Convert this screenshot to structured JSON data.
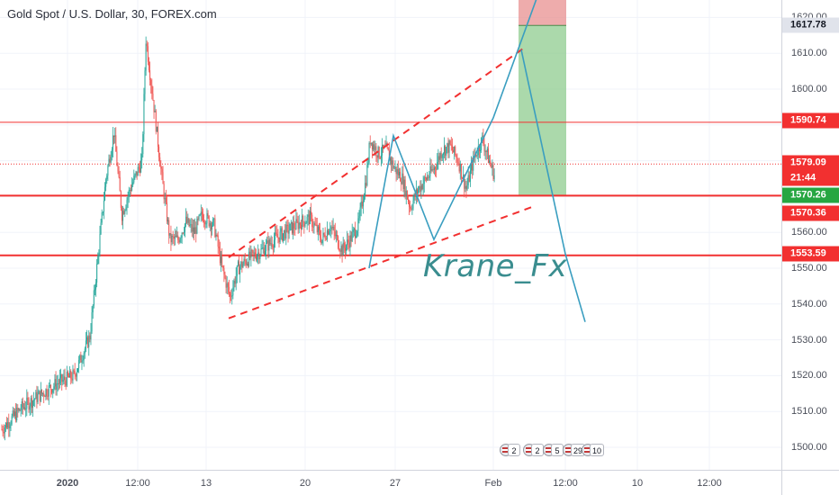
{
  "symbol": {
    "title": "Gold Spot / U.S. Dollar, 30, FOREX.com"
  },
  "watermark": "Krane_Fx",
  "price_axis": {
    "ticks": [
      "1500.00",
      "1510.00",
      "1520.00",
      "1530.00",
      "1540.00",
      "1550.00",
      "1560.00",
      "1570.00",
      "1580.00",
      "1590.00",
      "1600.00",
      "1610.00",
      "1620.00"
    ],
    "tags": [
      {
        "label": "1617.78",
        "bg": "#e0e3eb",
        "fg": "#131722"
      },
      {
        "label": "1590.74",
        "bg": "#f23030",
        "fg": "#ffffff"
      },
      {
        "label": "1579.09",
        "bg": "#f23030",
        "fg": "#ffffff"
      },
      {
        "label": "21:44",
        "bg": "#f23030",
        "fg": "#ffffff"
      },
      {
        "label": "1570.26",
        "bg": "#26a641",
        "fg": "#ffffff"
      },
      {
        "label": "1570.36",
        "bg": "#f23030",
        "fg": "#ffffff"
      },
      {
        "label": "1553.59",
        "bg": "#f23030",
        "fg": "#ffffff"
      }
    ]
  },
  "time_axis": {
    "labels": [
      "2020",
      "12:00",
      "13",
      "20",
      "27",
      "Feb",
      "12:00",
      "10",
      "12:00"
    ]
  },
  "events": {
    "counts": [
      "2",
      "2",
      "5",
      "29",
      "10"
    ]
  },
  "colors": {
    "up": "#26a69a",
    "down": "#ef5350",
    "level": "#f23030",
    "pattern": "#3a9ec0",
    "target_zone": "#8fcc8f",
    "stop_zone": "#e89090"
  },
  "chart_data": {
    "type": "candlestick",
    "symbol": "Gold Spot / U.S. Dollar",
    "interval": "30",
    "ylim": [
      1495,
      1630
    ],
    "price_levels": [
      1590.74,
      1579.09,
      1570.26,
      1553.59
    ],
    "position": {
      "entry": 1570.26,
      "target": 1617.78
    },
    "trend_channel": {
      "lower_start": 1536,
      "lower_end": 1567,
      "upper_start": 1553,
      "upper_end": 1612
    },
    "zigzag_pattern": [
      1550,
      1587,
      1558,
      1592,
      1628
    ],
    "projection": [
      1611,
      1554,
      1535
    ],
    "close_path": [
      [
        0,
        1505
      ],
      [
        5,
        1511
      ],
      [
        10,
        1515
      ],
      [
        14,
        1518
      ],
      [
        18,
        1520
      ],
      [
        22,
        1531
      ],
      [
        26,
        1575
      ],
      [
        28,
        1588
      ],
      [
        30,
        1565
      ],
      [
        32,
        1572
      ],
      [
        35,
        1580
      ],
      [
        36,
        1614
      ],
      [
        38,
        1595
      ],
      [
        40,
        1575
      ],
      [
        42,
        1558
      ],
      [
        44,
        1558
      ],
      [
        46,
        1563
      ],
      [
        48,
        1560
      ],
      [
        50,
        1565
      ],
      [
        53,
        1562
      ],
      [
        55,
        1550
      ],
      [
        57,
        1542
      ],
      [
        59,
        1550
      ],
      [
        62,
        1553
      ],
      [
        65,
        1555
      ],
      [
        68,
        1558
      ],
      [
        72,
        1561
      ],
      [
        75,
        1563
      ],
      [
        77,
        1564
      ],
      [
        80,
        1558
      ],
      [
        82,
        1562
      ],
      [
        85,
        1555
      ],
      [
        87,
        1558
      ],
      [
        89,
        1562
      ],
      [
        91,
        1575
      ],
      [
        92,
        1586
      ],
      [
        94,
        1582
      ],
      [
        96,
        1583
      ],
      [
        98,
        1578
      ],
      [
        100,
        1575
      ],
      [
        102,
        1567
      ],
      [
        104,
        1572
      ],
      [
        106,
        1575
      ],
      [
        108,
        1578
      ],
      [
        110,
        1583
      ],
      [
        112,
        1584
      ],
      [
        114,
        1580
      ],
      [
        116,
        1572
      ],
      [
        118,
        1581
      ],
      [
        120,
        1586
      ],
      [
        122,
        1579
      ],
      [
        123,
        1576
      ]
    ]
  }
}
